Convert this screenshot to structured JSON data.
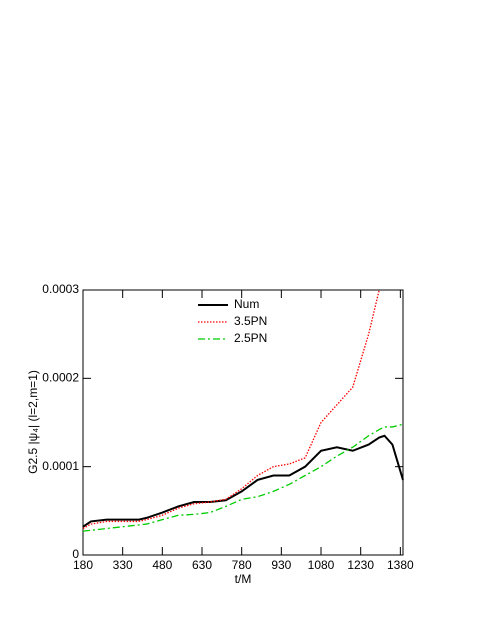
{
  "chart_data": {
    "type": "line",
    "xlabel": "t/M",
    "ylabel": "G2.5 |ψ₄| (l=2,m=1)",
    "x": [
      180,
      210,
      270,
      330,
      390,
      420,
      480,
      540,
      600,
      660,
      720,
      780,
      840,
      900,
      960,
      1020,
      1080,
      1140,
      1200,
      1260,
      1300,
      1320,
      1350,
      1390
    ],
    "series": [
      {
        "name": "Num",
        "color": "#000000",
        "dash": "solid",
        "values": [
          3.2e-05,
          3.8e-05,
          4e-05,
          4e-05,
          4e-05,
          4.2e-05,
          4.8e-05,
          5.5e-05,
          6e-05,
          6e-05,
          6.2e-05,
          7.2e-05,
          8.5e-05,
          9e-05,
          9e-05,
          0.0001,
          0.000118,
          0.000122,
          0.000118,
          0.000125,
          0.000133,
          0.000135,
          0.000125,
          8.5e-05
        ]
      },
      {
        "name": "3.5PN",
        "color": "#ff0000",
        "dash": "dotted",
        "values": [
          3e-05,
          3.5e-05,
          3.8e-05,
          3.8e-05,
          3.8e-05,
          4e-05,
          4.5e-05,
          5.3e-05,
          5.8e-05,
          6e-05,
          6.3e-05,
          7.5e-05,
          9e-05,
          0.0001,
          0.000103,
          0.00011,
          0.00015,
          0.00017,
          0.00019,
          0.00025,
          0.0003,
          null,
          null,
          null
        ]
      },
      {
        "name": "2.5PN",
        "color": "#00cc00",
        "dash": "dashdot",
        "values": [
          2.7e-05,
          2.8e-05,
          3e-05,
          3.2e-05,
          3.4e-05,
          3.5e-05,
          4e-05,
          4.5e-05,
          4.6e-05,
          4.8e-05,
          5.5e-05,
          6.3e-05,
          6.6e-05,
          7.2e-05,
          8e-05,
          9e-05,
          0.0001,
          0.000112,
          0.000122,
          0.000135,
          0.000142,
          0.000145,
          0.000145,
          0.000148
        ]
      }
    ],
    "xlim": [
      180,
      1390
    ],
    "ylim": [
      0,
      0.0003
    ],
    "xticks": [
      180,
      330,
      480,
      630,
      780,
      930,
      1080,
      1230,
      1380
    ],
    "yticks": [
      0,
      0.0001,
      0.0002,
      0.0003
    ],
    "legend": "upper left",
    "grid": false
  }
}
